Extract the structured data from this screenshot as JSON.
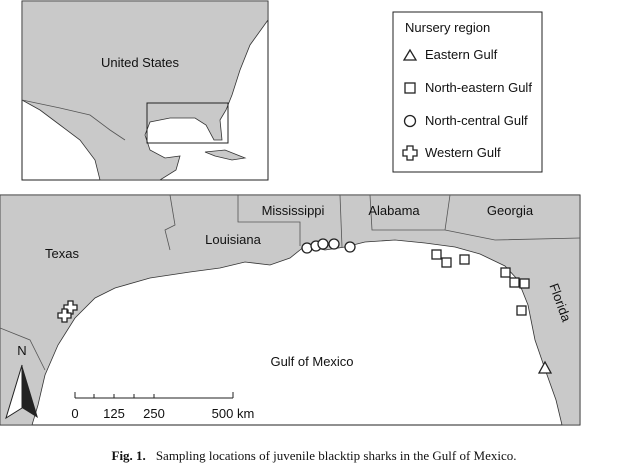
{
  "inset": {
    "label": "United States"
  },
  "legend": {
    "title": "Nursery region",
    "items": [
      "Eastern Gulf",
      "North-eastern Gulf",
      "North-central Gulf",
      "Western Gulf"
    ]
  },
  "map": {
    "labels": {
      "mississippi": "Mississippi",
      "alabama": "Alabama",
      "georgia": "Georgia",
      "louisiana": "Louisiana",
      "texas": "Texas",
      "florida": "Florida",
      "gulf": "Gulf of Mexico"
    },
    "north": "N",
    "scale": {
      "ticks": [
        "0",
        "125",
        "250"
      ],
      "end": "500 km"
    }
  },
  "caption": {
    "label": "Fig. 1.",
    "text": "Sampling locations of juvenile blacktip sharks in the Gulf of Mexico."
  }
}
